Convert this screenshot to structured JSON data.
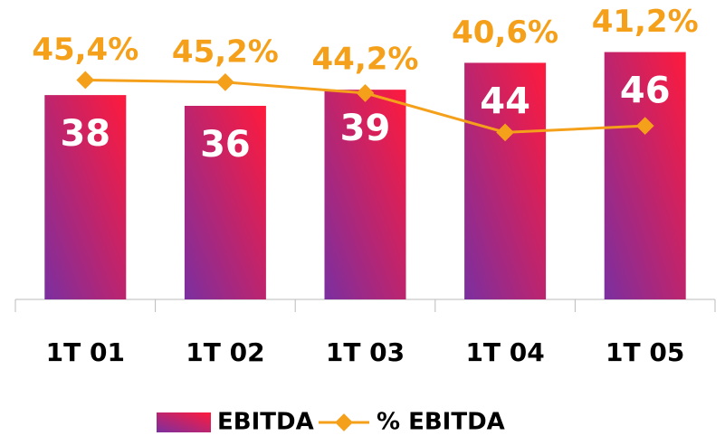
{
  "chart_data": {
    "type": "bar-line",
    "categories": [
      "1T 01",
      "1T 02",
      "1T 03",
      "1T 04",
      "1T 05"
    ],
    "series": [
      {
        "name": "EBITDA",
        "type": "bar",
        "color": "#ff1a3c",
        "color2": "#7b2fa0",
        "values": [
          38,
          36,
          39,
          44,
          46
        ]
      },
      {
        "name": "% EBITDA",
        "type": "line",
        "axis": "y2",
        "color": "#f5a01a",
        "values": [
          45.4,
          45.2,
          44.2,
          40.6,
          41.2
        ],
        "value_labels": [
          "45,4%",
          "45,2%",
          "44,2%",
          "40,6%",
          "41,2%"
        ]
      }
    ],
    "ylim": [
      0,
      54
    ],
    "y2lim": [
      25.3,
      51.9
    ],
    "legend": "bottom"
  }
}
